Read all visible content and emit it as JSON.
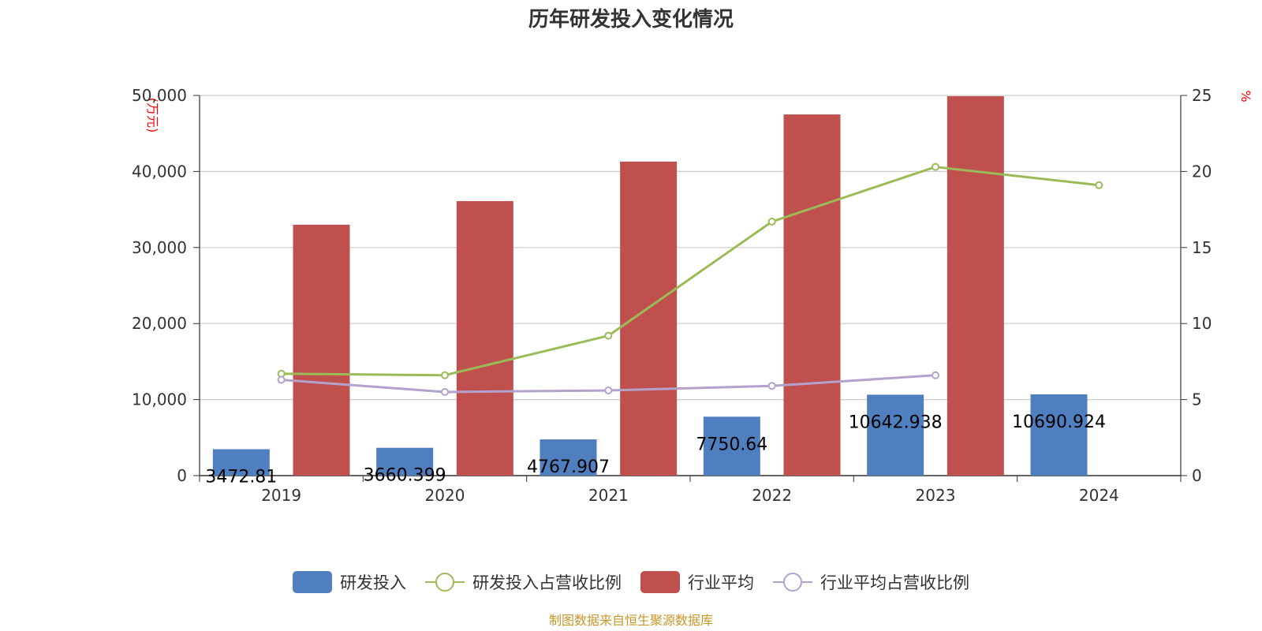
{
  "chart_data": {
    "type": "bar",
    "title": "历年研发投入变化情况",
    "categories": [
      "2019",
      "2020",
      "2021",
      "2022",
      "2023",
      "2024"
    ],
    "y_left": {
      "unit": "(万元)",
      "ylim": [
        0,
        50000
      ],
      "ticks": [
        "0",
        "10,000",
        "20,000",
        "30,000",
        "40,000",
        "50,000"
      ]
    },
    "y_right": {
      "unit": "%",
      "ylim": [
        0,
        25
      ],
      "ticks": [
        "0",
        "5",
        "10",
        "15",
        "20",
        "25"
      ]
    },
    "grid": true,
    "legend_position": "bottom-center",
    "series": [
      {
        "name": "研发投入",
        "kind": "bar",
        "axis": "left",
        "color": "#4f7fbf",
        "values": [
          3472.81,
          3660.399,
          4767.907,
          7750.64,
          10642.938,
          10690.924
        ],
        "labels": [
          "3472.81",
          "3660.399",
          "4767.907",
          "7750.64",
          "10642.938",
          "10690.924"
        ]
      },
      {
        "name": "研发投入占营收比例",
        "kind": "line",
        "axis": "right",
        "color": "#9bbb59",
        "values": [
          6.7,
          6.6,
          9.2,
          16.7,
          20.3,
          19.1
        ]
      },
      {
        "name": "行业平均",
        "kind": "bar",
        "axis": "left",
        "color": "#c0504d",
        "values": [
          33000,
          36100,
          41300,
          47500,
          49900,
          null
        ]
      },
      {
        "name": "行业平均占营收比例",
        "kind": "line",
        "axis": "right",
        "color": "#b3a2cc",
        "values": [
          6.3,
          5.5,
          5.6,
          5.9,
          6.6,
          null
        ]
      }
    ],
    "source": "制图数据来自恒生聚源数据库"
  }
}
